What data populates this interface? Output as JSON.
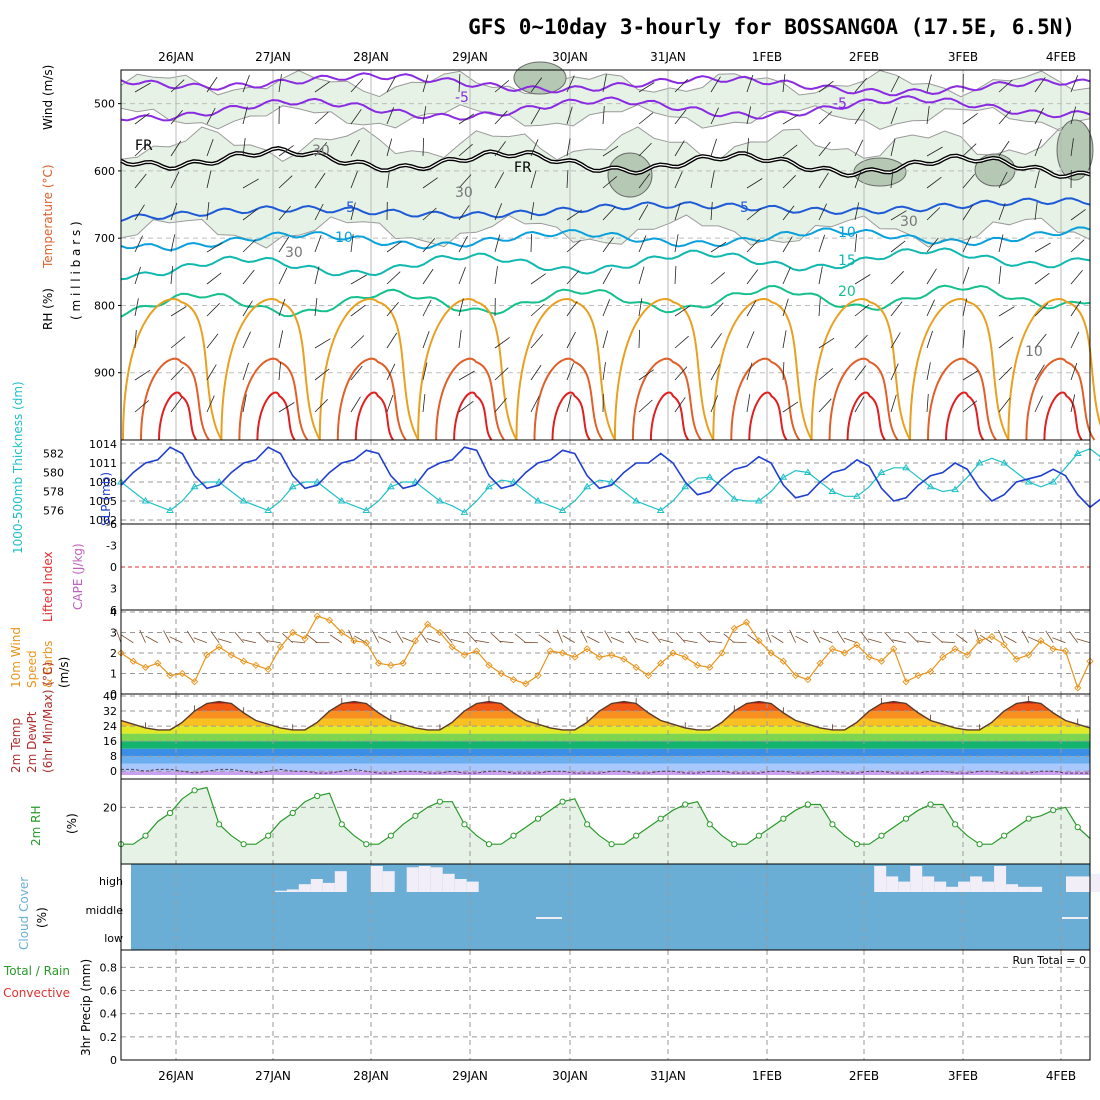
{
  "title": "GFS 0~10day 3-hourly for BOSSANGOA (17.5E, 6.5N)",
  "colors": {
    "rh_fill_light": "#e6f2e6",
    "rh_fill_dark": "#b4c8b4",
    "temp_cold": "#8a2be2",
    "temp_frz": "#000000",
    "temp_5": "#1f5ad6",
    "temp_10": "#0aa0dc",
    "temp_15": "#10b8b0",
    "temp_20": "#14c08c",
    "temp_warm": "#e8a020",
    "temp_hot": "#e0602a",
    "temp_hottest": "#e02020",
    "slp": "#1f3fcf",
    "thickness": "#20c0c8",
    "lifted": "#e03030",
    "wind10": "#e8941c",
    "rh2m": "#2a9a2a",
    "cloud": "#6aaed6",
    "cloud_hi": "#f2eef8"
  },
  "chart_data": [
    {
      "id": "upper_air",
      "type": "contour",
      "ylabel_parts": [
        "RH (%)",
        "Temperature (°C)",
        "Wind (m/s)"
      ],
      "yaxis_title": "( m i l l i b a r s )",
      "dates": [
        "26JAN",
        "27JAN",
        "28JAN",
        "29JAN",
        "30JAN",
        "31JAN",
        "1FEB",
        "2FEB",
        "3FEB",
        "4FEB"
      ],
      "y_ticks": [
        500,
        600,
        700,
        800,
        900
      ],
      "ylim": [
        1000,
        450
      ],
      "contour_labels": [
        "-5",
        "-5",
        "FR",
        "FR",
        "5",
        "5",
        "10",
        "10",
        "15",
        "20",
        "30",
        "30",
        "30",
        "30",
        "10"
      ]
    },
    {
      "id": "slp_thickness",
      "type": "line",
      "ylabel_left": "1000-500mb Thickness (dm)",
      "ylabel_right": "SLP (mb)",
      "left_ticks": [
        576,
        578,
        580,
        582
      ],
      "right_ticks": [
        1002,
        1005,
        1008,
        1011,
        1014
      ],
      "ylim_left": [
        575,
        583
      ],
      "ylim_right": [
        1002,
        1014
      ],
      "series": [
        {
          "name": "SLP (mb)",
          "values": [
            1007.5,
            1009.5,
            1011,
            1011.5,
            1013.5,
            1012.5,
            1009,
            1007,
            1007.5,
            1009.5,
            1011,
            1011.5,
            1013.5,
            1012.5,
            1009,
            1007,
            1007.5,
            1009.5,
            1011,
            1011.5,
            1013,
            1012.5,
            1009,
            1007,
            1007.5,
            1010,
            1011,
            1011.5,
            1013.5,
            1013,
            1009,
            1007,
            1007.5,
            1009.5,
            1011,
            1011.5,
            1013,
            1012.5,
            1009,
            1007,
            1007.5,
            1009.5,
            1011,
            1011,
            1012.5,
            1011,
            1008,
            1006,
            1006.5,
            1008.5,
            1010,
            1010.5,
            1012,
            1011,
            1007.5,
            1005.5,
            1006,
            1008,
            1009.5,
            1010,
            1011.5,
            1010.5,
            1007,
            1005,
            1005.5,
            1007.5,
            1009,
            1009.5,
            1011,
            1010,
            1007,
            1005,
            1006,
            1008,
            1008.5,
            1009,
            1010,
            1009,
            1006,
            1004,
            1005.5,
            1007.5
          ]
        },
        {
          "name": "Thickness (dm)",
          "values": [
            579,
            578,
            577,
            576.5,
            576,
            577,
            578.5,
            579,
            579,
            578,
            577,
            576.5,
            576,
            577,
            578.5,
            579,
            579,
            578,
            577,
            576.5,
            576,
            577,
            578.5,
            579,
            579,
            578,
            577,
            576.5,
            575.8,
            577,
            578.5,
            579.2,
            579,
            578,
            577,
            576.5,
            576,
            577,
            578.5,
            579.2,
            579,
            578,
            577,
            576.5,
            576,
            577,
            578.5,
            579.4,
            579.5,
            578.5,
            577.2,
            577,
            577,
            578,
            579.5,
            580.2,
            580,
            579,
            578,
            577.5,
            577.5,
            578.5,
            580,
            580.5,
            580.5,
            579.5,
            578.5,
            578,
            578.2,
            579.5,
            581,
            581.5,
            581,
            580,
            579,
            578.5,
            579,
            580.5,
            582,
            582.5,
            581.5,
            580.5
          ]
        }
      ]
    },
    {
      "id": "lifted_cape",
      "type": "line",
      "ylabel_left": "Lifted Index",
      "ylabel_right": "CAPE (J/kg)",
      "left_ticks": [
        "-6",
        "-3",
        "0",
        "3",
        "6"
      ],
      "ylim": [
        -6,
        6
      ],
      "series": [
        {
          "name": "Lifted Index",
          "values": [
            0
          ]
        }
      ]
    },
    {
      "id": "wind10m",
      "type": "line",
      "ylabel": [
        "10m Wind",
        "Speed",
        "& Barbs",
        "(m/s)"
      ],
      "ticks": [
        0,
        1,
        2,
        3,
        4
      ],
      "ylim": [
        0,
        4
      ],
      "series": [
        {
          "name": "10m Wind Speed",
          "values": [
            2.0,
            1.6,
            1.3,
            1.5,
            0.9,
            1.0,
            0.6,
            1.9,
            2.3,
            1.9,
            1.6,
            1.4,
            1.2,
            2.3,
            3.0,
            2.7,
            3.8,
            3.6,
            3.0,
            2.6,
            2.5,
            1.5,
            1.4,
            1.5,
            2.6,
            3.4,
            3.0,
            2.3,
            1.9,
            2.1,
            1.4,
            1.0,
            0.7,
            0.5,
            0.9,
            2.1,
            2.0,
            1.8,
            2.2,
            1.8,
            1.9,
            1.7,
            1.3,
            0.9,
            1.5,
            2.0,
            1.8,
            1.4,
            1.3,
            2.0,
            3.2,
            3.5,
            2.6,
            2.0,
            1.6,
            0.9,
            0.7,
            1.5,
            2.2,
            2.0,
            2.4,
            1.8,
            1.6,
            2.2,
            0.6,
            0.9,
            1.1,
            1.8,
            2.2,
            1.9,
            2.6,
            2.8,
            2.4,
            1.7,
            1.9,
            2.6,
            2.2,
            2.1,
            0.3,
            1.6
          ]
        }
      ]
    },
    {
      "id": "temp2m",
      "type": "area",
      "ylabel": [
        "2m Temp",
        "2m DewPt",
        "(6hr Min/Max) (°C)"
      ],
      "ticks": [
        0,
        8,
        16,
        24,
        32,
        40
      ],
      "ylim": [
        -2,
        40
      ],
      "series": [
        {
          "name": "2m Temp",
          "values": [
            27,
            25,
            23,
            22,
            22,
            26,
            32,
            36,
            37,
            36,
            31,
            27,
            25,
            23,
            22,
            22,
            26,
            32,
            36,
            37,
            36,
            31,
            27,
            25,
            23,
            22,
            22,
            26,
            32,
            36,
            37,
            36,
            31,
            27,
            25,
            23,
            22,
            22,
            26,
            32,
            36,
            37,
            36,
            31,
            27,
            25,
            23,
            22,
            22,
            26,
            32,
            36,
            37,
            36,
            31,
            27,
            25,
            23,
            22,
            22,
            26,
            32,
            36,
            37,
            36,
            31,
            27,
            25,
            23,
            22,
            22,
            26,
            32,
            36,
            37,
            36,
            31,
            27,
            25,
            23
          ]
        },
        {
          "name": "2m DewPt",
          "values": [
            1,
            1,
            0,
            1,
            1,
            0,
            -1,
            0,
            1,
            1,
            0,
            -1,
            0,
            1,
            0,
            0,
            -1,
            -1,
            0,
            1,
            0,
            -1,
            -1,
            0,
            0,
            -1,
            -1,
            0,
            -1,
            -1,
            0,
            0,
            -1,
            -1,
            -1,
            0,
            0,
            -1,
            -1,
            -1,
            0,
            0,
            -1,
            -1,
            0,
            0,
            -1,
            -1,
            0,
            0,
            -1,
            -1,
            -1,
            0,
            0,
            -1,
            -1,
            0,
            0,
            -1,
            -1,
            0,
            0,
            -1,
            -1,
            -1,
            0,
            0,
            -1,
            -1,
            0,
            0,
            -1,
            -1,
            -1,
            0,
            0,
            -1,
            -1,
            -1
          ]
        }
      ]
    },
    {
      "id": "rh2m",
      "type": "area",
      "ylabel": [
        "2m RH",
        "(%)"
      ],
      "ticks": [
        20
      ],
      "ylim": [
        0,
        30
      ],
      "series": [
        {
          "name": "2m RH",
          "values": [
            7,
            7,
            10,
            15,
            18,
            23,
            26,
            27,
            14,
            10,
            7,
            7,
            10,
            15,
            18,
            22,
            24,
            25,
            14,
            10,
            7,
            7,
            10,
            14,
            17,
            20,
            22,
            22,
            14,
            10,
            7,
            7,
            10,
            13,
            16,
            19,
            22,
            23,
            14,
            10,
            7,
            7,
            10,
            13,
            16,
            19,
            21,
            22,
            14,
            10,
            7,
            7,
            10,
            13,
            16,
            19,
            21,
            21,
            14,
            10,
            7,
            7,
            10,
            13,
            16,
            19,
            21,
            21,
            14,
            10,
            7,
            7,
            10,
            13,
            16,
            17,
            19,
            20,
            13,
            9
          ]
        }
      ]
    },
    {
      "id": "cloud",
      "type": "area",
      "ylabel": [
        "Cloud Cover",
        "(%)"
      ],
      "levels": [
        "high",
        "middle",
        "low"
      ],
      "series": [
        {
          "name": "high",
          "values": [
            0,
            0,
            0,
            0,
            0,
            0,
            0,
            0,
            0,
            0,
            0,
            0,
            5,
            10,
            30,
            50,
            35,
            80,
            0,
            0,
            100,
            80,
            0,
            95,
            100,
            95,
            70,
            50,
            40,
            0,
            0,
            0,
            0,
            0,
            0,
            0,
            0,
            0,
            0,
            0,
            0,
            0,
            0,
            0,
            0,
            0,
            0,
            0,
            0,
            0,
            0,
            0,
            0,
            0,
            0,
            0,
            0,
            0,
            0,
            0,
            0,
            0,
            100,
            60,
            40,
            100,
            60,
            40,
            20,
            40,
            60,
            40,
            100,
            30,
            20,
            20,
            0,
            0,
            60,
            60,
            70
          ]
        }
      ]
    },
    {
      "id": "precip",
      "type": "bar",
      "ylabel_parts": [
        "Total / Rain",
        "Convective",
        "3hr Precip (mm)"
      ],
      "ticks": [
        "0",
        "0.2",
        "0.4",
        "0.6",
        "0.8"
      ],
      "ylim": [
        0,
        0.95
      ],
      "run_total": "Run Total = 0",
      "values": [
        0
      ]
    }
  ]
}
